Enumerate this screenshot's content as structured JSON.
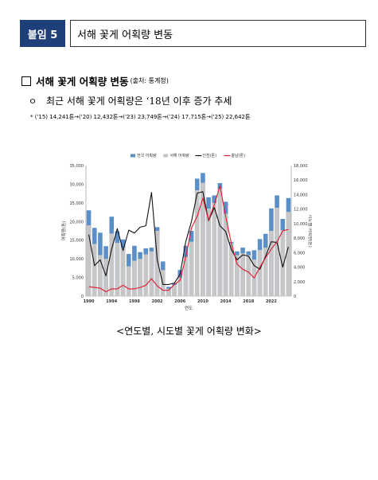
{
  "header": {
    "tag": "붙임 5",
    "title": "서해 꽃게 어획량 변동"
  },
  "section": {
    "title": "서해 꽃게 어획량 변동",
    "source": "(출처: 통계청)"
  },
  "bullet": {
    "marker": "ㅇ",
    "text": "최근 서해 꽃게 어획량은  ‘18년 이후 증가 추세"
  },
  "note": "* ('15) 14,241톤→('20) 12,432톤→('23) 23,749톤→('24) 17,715톤→('25) 22,642톤",
  "caption": "<연도별, 시도별 꽃게 어획량 변화>",
  "chart_data": {
    "type": "bar",
    "xlabel": "연도",
    "ylabel": "어획량(톤)",
    "y2label": "시도별 어획량(톤)",
    "ylim": [
      0,
      35000
    ],
    "y2lim": [
      0,
      18000
    ],
    "x_ticks": [
      "1990",
      "1994",
      "1998",
      "2002",
      "2006",
      "2010",
      "2014",
      "2018",
      "2022"
    ],
    "y_ticks": [
      "0",
      "5,000",
      "10,000",
      "15,000",
      "20,000",
      "25,000",
      "30,000",
      "35,000"
    ],
    "y2_ticks": [
      "0",
      "2,000",
      "4,000",
      "6,000",
      "8,000",
      "10,000",
      "12,000",
      "14,000",
      "16,000",
      "18,000"
    ],
    "legend_placement": "top",
    "years": [
      1990,
      1991,
      1992,
      1993,
      1994,
      1995,
      1996,
      1997,
      1998,
      1999,
      2000,
      2001,
      2002,
      2003,
      2004,
      2005,
      2006,
      2007,
      2008,
      2009,
      2010,
      2011,
      2012,
      2013,
      2014,
      2015,
      2016,
      2017,
      2018,
      2019,
      2020,
      2021,
      2022,
      2023,
      2024,
      2025
    ],
    "series": [
      {
        "name": "전국 어획량",
        "kind": "bar",
        "axis": "left",
        "color": "#5b8fc7",
        "values": [
          23000,
          18300,
          17000,
          13400,
          21300,
          17400,
          15200,
          11300,
          13500,
          11800,
          12800,
          13000,
          18500,
          9300,
          2500,
          3500,
          7000,
          13500,
          17500,
          31500,
          33000,
          26500,
          27000,
          30300,
          25300,
          14500,
          12000,
          13000,
          12000,
          12300,
          15300,
          16700,
          23500,
          27000,
          20700,
          26300
        ]
      },
      {
        "name": "서해 어획량",
        "kind": "bar",
        "axis": "left",
        "color": "#c6c6c6",
        "values": [
          19000,
          14000,
          11000,
          10000,
          16800,
          14300,
          13000,
          8000,
          9500,
          10000,
          11200,
          12000,
          17500,
          7000,
          2000,
          3000,
          5000,
          10500,
          14600,
          28400,
          30400,
          23500,
          25000,
          28800,
          22100,
          14200,
          11000,
          11500,
          11000,
          9800,
          12400,
          13000,
          17500,
          23700,
          17700,
          22600
        ]
      },
      {
        "name": "인천(톤)",
        "kind": "line",
        "axis": "right",
        "color": "#111111",
        "values": [
          8500,
          4200,
          5000,
          2800,
          6500,
          9300,
          6300,
          9100,
          8700,
          9500,
          9700,
          14300,
          5000,
          1600,
          1600,
          1800,
          3000,
          7500,
          10300,
          14200,
          14400,
          10400,
          12200,
          9700,
          8900,
          6400,
          5000,
          5700,
          5500,
          4200,
          3700,
          5500,
          7500,
          7400,
          4000,
          6800
        ]
      },
      {
        "name": "충남(톤)",
        "kind": "line",
        "axis": "right",
        "color": "#e0182d",
        "values": [
          1300,
          1200,
          1100,
          600,
          1000,
          1000,
          1500,
          1000,
          1000,
          1200,
          1500,
          2400,
          1400,
          800,
          800,
          1600,
          2200,
          5400,
          9400,
          11000,
          13500,
          10500,
          12600,
          15200,
          11000,
          7200,
          4400,
          3700,
          3300,
          2500,
          4000,
          5300,
          6500,
          7500,
          9000,
          9200
        ]
      }
    ]
  }
}
